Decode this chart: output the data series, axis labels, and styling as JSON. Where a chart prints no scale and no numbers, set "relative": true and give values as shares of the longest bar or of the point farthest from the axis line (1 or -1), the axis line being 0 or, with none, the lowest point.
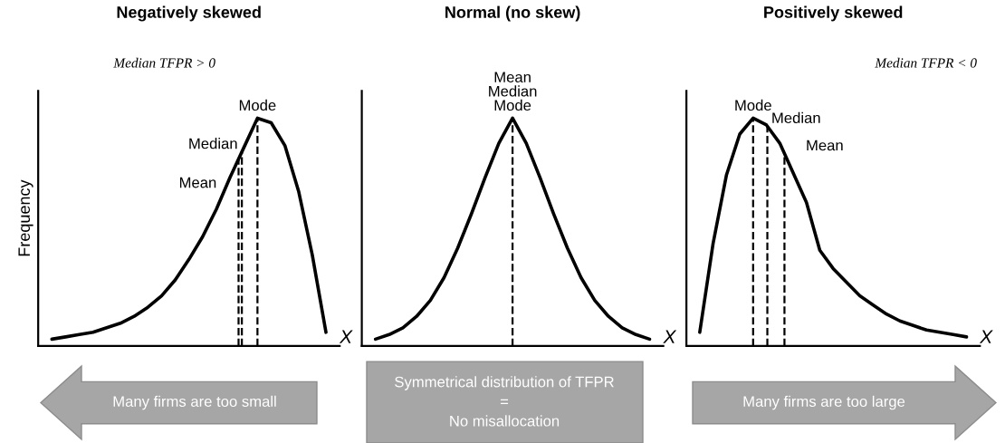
{
  "chart_data": [
    {
      "type": "line",
      "title": "Negatively skewed",
      "subtitle": "Median TFPR > 0",
      "ylabel": "Frequency",
      "xlabel": "X",
      "relative": true,
      "line_style": "solid",
      "categories": [
        null,
        null,
        null,
        null,
        null,
        null,
        null,
        null,
        null,
        null,
        null,
        null,
        null,
        null,
        null,
        null,
        null,
        null,
        null,
        null,
        null
      ],
      "series": [
        {
          "color": "#000000",
          "values": [
            0.03,
            0.04,
            0.05,
            0.06,
            0.08,
            0.1,
            0.13,
            0.17,
            0.22,
            0.29,
            0.38,
            0.48,
            0.6,
            0.74,
            0.87,
            1.0,
            0.98,
            0.88,
            0.68,
            0.4,
            0.06
          ]
        }
      ],
      "annotations": [
        "Mean",
        "Median",
        "Mode"
      ]
    },
    {
      "type": "line",
      "title": "Normal (no skew)",
      "xlabel": "X",
      "relative": true,
      "line_style": "solid",
      "categories": [
        null,
        null,
        null,
        null,
        null,
        null,
        null,
        null,
        null,
        null,
        null,
        null,
        null,
        null,
        null,
        null,
        null,
        null,
        null,
        null,
        null
      ],
      "series": [
        {
          "color": "#000000",
          "values": [
            0.03,
            0.05,
            0.08,
            0.13,
            0.2,
            0.3,
            0.43,
            0.58,
            0.74,
            0.89,
            1.0,
            0.89,
            0.74,
            0.58,
            0.43,
            0.3,
            0.2,
            0.13,
            0.08,
            0.05,
            0.03
          ]
        }
      ],
      "annotations": [
        "Mean\nMedian\nMode"
      ]
    },
    {
      "type": "line",
      "title": "Positively skewed",
      "subtitle": "Median TFPR < 0",
      "xlabel": "X",
      "relative": true,
      "line_style": "solid",
      "categories": [
        null,
        null,
        null,
        null,
        null,
        null,
        null,
        null,
        null,
        null,
        null,
        null,
        null,
        null,
        null,
        null,
        null,
        null,
        null,
        null,
        null
      ],
      "series": [
        {
          "color": "#000000",
          "values": [
            0.06,
            0.45,
            0.75,
            0.93,
            1.0,
            0.97,
            0.89,
            0.76,
            0.63,
            0.42,
            0.34,
            0.28,
            0.22,
            0.18,
            0.14,
            0.11,
            0.09,
            0.07,
            0.06,
            0.05,
            0.04
          ]
        }
      ],
      "annotations": [
        "Mean",
        "Median",
        "Mode"
      ]
    },
    {
      "type": "other",
      "annotations": [
        "Many firms are too small",
        "Symmetrical distribution of TFPR\n=\nNo misallocation",
        "Many firms are too large"
      ]
    }
  ]
}
